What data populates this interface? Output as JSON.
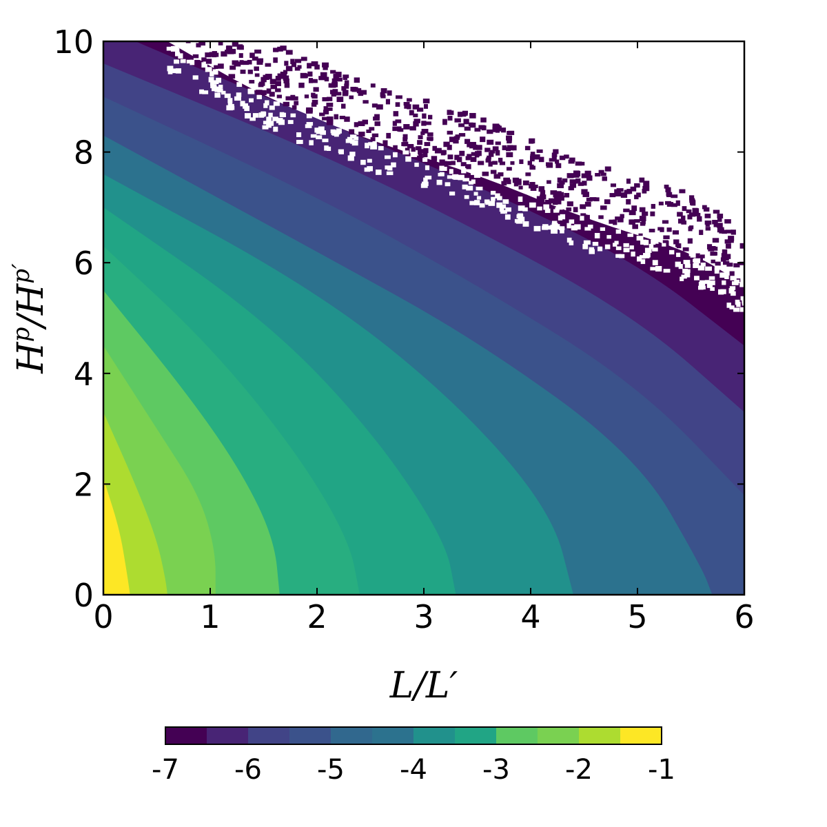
{
  "chart_data": {
    "type": "heatmap",
    "title": "",
    "xlabel": "L/L′",
    "ylabel": "H^p/H^p′",
    "xlim": [
      0,
      6
    ],
    "ylim": [
      0,
      10
    ],
    "xticks": [
      0,
      1,
      2,
      3,
      4,
      5,
      6
    ],
    "yticks": [
      0,
      2,
      4,
      6,
      8,
      10
    ],
    "grid": false,
    "description_levels": "filled contours of log-scaled value, decreasing from bottom-left to top-right; white region at top-right is undefined",
    "colorbar": {
      "orientation": "horizontal",
      "placement": "bottom",
      "range": [
        -7,
        -1
      ],
      "step": 0.5,
      "ticks": [
        -7,
        -6,
        -5,
        -4,
        -3,
        -2,
        -1
      ],
      "tick_labels": [
        "-7",
        "-6",
        "-5",
        "-4",
        "-3",
        "-2",
        "-1"
      ],
      "colors": [
        "#440154",
        "#472d7b",
        "#3b528b",
        "#2c728e",
        "#21918c",
        "#28ae80",
        "#5ec962",
        "#addc30",
        "#fde725",
        "#440154",
        "#482475",
        "#414487"
      ]
    },
    "contour_boundaries": [
      {
        "level": -1.5,
        "points": [
          [
            0,
            2.1
          ],
          [
            0.15,
            1.2
          ],
          [
            0.22,
            0.4
          ],
          [
            0.25,
            0
          ]
        ]
      },
      {
        "level": -2.0,
        "points": [
          [
            0,
            3.3
          ],
          [
            0.3,
            2.0
          ],
          [
            0.5,
            1.0
          ],
          [
            0.58,
            0.3
          ],
          [
            0.6,
            0
          ]
        ]
      },
      {
        "level": -2.5,
        "points": [
          [
            0,
            4.5
          ],
          [
            0.5,
            3.0
          ],
          [
            0.9,
            1.8
          ],
          [
            1.05,
            0.8
          ],
          [
            1.05,
            0
          ]
        ]
      },
      {
        "level": -3.0,
        "points": [
          [
            0,
            5.5
          ],
          [
            0.8,
            3.6
          ],
          [
            1.3,
            2.2
          ],
          [
            1.6,
            1.0
          ],
          [
            1.65,
            0
          ]
        ]
      },
      {
        "level": -3.5,
        "points": [
          [
            0,
            6.3
          ],
          [
            1.0,
            4.5
          ],
          [
            1.8,
            2.6
          ],
          [
            2.3,
            1.0
          ],
          [
            2.4,
            0
          ]
        ]
      },
      {
        "level": -4.0,
        "points": [
          [
            0,
            7.0
          ],
          [
            1.5,
            5.0
          ],
          [
            2.5,
            3.0
          ],
          [
            3.2,
            1.0
          ],
          [
            3.3,
            0
          ]
        ]
      },
      {
        "level": -4.5,
        "points": [
          [
            0,
            7.6
          ],
          [
            2.0,
            5.5
          ],
          [
            3.3,
            3.5
          ],
          [
            4.2,
            1.5
          ],
          [
            4.4,
            0
          ]
        ]
      },
      {
        "level": -5.0,
        "points": [
          [
            0,
            8.3
          ],
          [
            2.0,
            6.2
          ],
          [
            3.5,
            4.6
          ],
          [
            5.0,
            2.5
          ],
          [
            5.6,
            0.5
          ],
          [
            5.7,
            0
          ]
        ]
      },
      {
        "level": -5.5,
        "points": [
          [
            0,
            9.0
          ],
          [
            2.0,
            7.2
          ],
          [
            3.5,
            5.6
          ],
          [
            5.0,
            3.8
          ],
          [
            6.0,
            1.8
          ]
        ]
      },
      {
        "level": -6.0,
        "points": [
          [
            0,
            9.6
          ],
          [
            2.0,
            8.0
          ],
          [
            3.5,
            6.6
          ],
          [
            5.0,
            5.0
          ],
          [
            6.0,
            3.3
          ]
        ]
      },
      {
        "level": -6.5,
        "points": [
          [
            0.3,
            10
          ],
          [
            2.0,
            8.6
          ],
          [
            3.5,
            7.4
          ],
          [
            5.0,
            6.0
          ],
          [
            6.0,
            4.5
          ]
        ]
      },
      {
        "level": -7.0,
        "points": [
          [
            0.6,
            10
          ],
          [
            1.5,
            9.0
          ],
          [
            2.5,
            8.2
          ],
          [
            3.5,
            7.6
          ],
          [
            4.5,
            6.8
          ],
          [
            5.5,
            6.2
          ],
          [
            6.0,
            5.6
          ]
        ]
      }
    ]
  }
}
